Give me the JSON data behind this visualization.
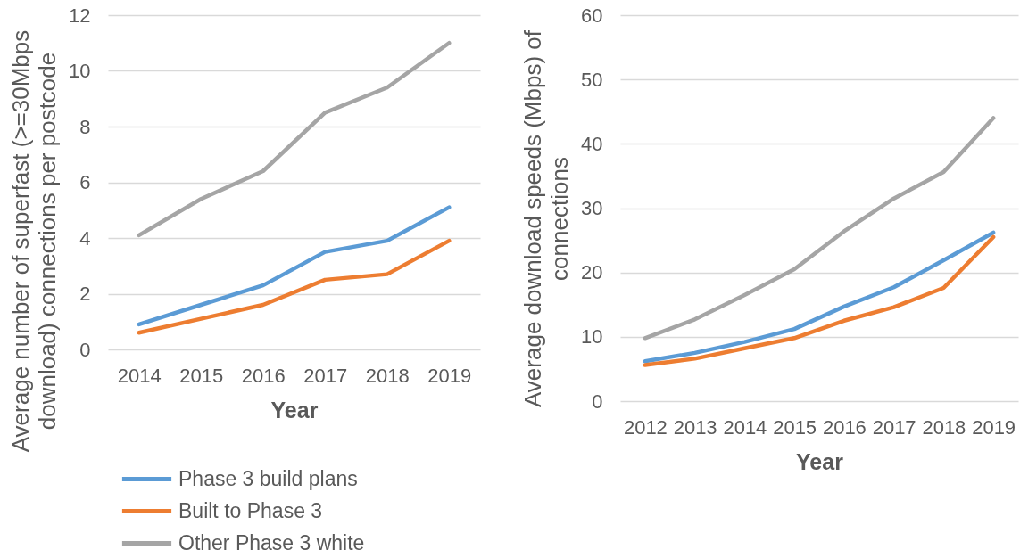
{
  "chart_data": [
    {
      "type": "line",
      "xlabel": "Year",
      "ylabel": "Average number of superfast (>=30Mbps download) connections per postcode",
      "categories": [
        "2014",
        "2015",
        "2016",
        "2017",
        "2018",
        "2019"
      ],
      "series": [
        {
          "name": "Phase 3 build plans",
          "color": "#5b9bd5",
          "values": [
            0.9,
            1.6,
            2.3,
            3.5,
            3.9,
            5.1
          ]
        },
        {
          "name": "Built to Phase 3",
          "color": "#ed7d31",
          "values": [
            0.6,
            1.1,
            1.6,
            2.5,
            2.7,
            3.9
          ]
        },
        {
          "name": "Other Phase 3 white",
          "color": "#a5a5a5",
          "values": [
            4.1,
            5.4,
            6.4,
            8.5,
            9.4,
            11.0
          ]
        }
      ],
      "ylim": [
        0,
        12
      ],
      "yticks": [
        0,
        2,
        4,
        6,
        8,
        10,
        12
      ],
      "grid": "y",
      "legend": "bottom"
    },
    {
      "type": "line",
      "xlabel": "Year",
      "ylabel": "Average download speeds (Mbps) of connections",
      "categories": [
        "2012",
        "2013",
        "2014",
        "2015",
        "2016",
        "2017",
        "2018",
        "2019"
      ],
      "series": [
        {
          "color": "#5b9bd5",
          "values": [
            6.2,
            7.5,
            9.2,
            11.2,
            14.7,
            17.7,
            21.9,
            26.2
          ]
        },
        {
          "color": "#ed7d31",
          "values": [
            5.6,
            6.6,
            8.2,
            9.8,
            12.5,
            14.6,
            17.6,
            25.5
          ]
        },
        {
          "color": "#a5a5a5",
          "values": [
            9.8,
            12.7,
            16.5,
            20.5,
            26.4,
            31.5,
            35.6,
            44.0
          ]
        }
      ],
      "ylim": [
        0,
        60
      ],
      "yticks": [
        0,
        10,
        20,
        30,
        40,
        50,
        60
      ],
      "grid": "y"
    }
  ]
}
